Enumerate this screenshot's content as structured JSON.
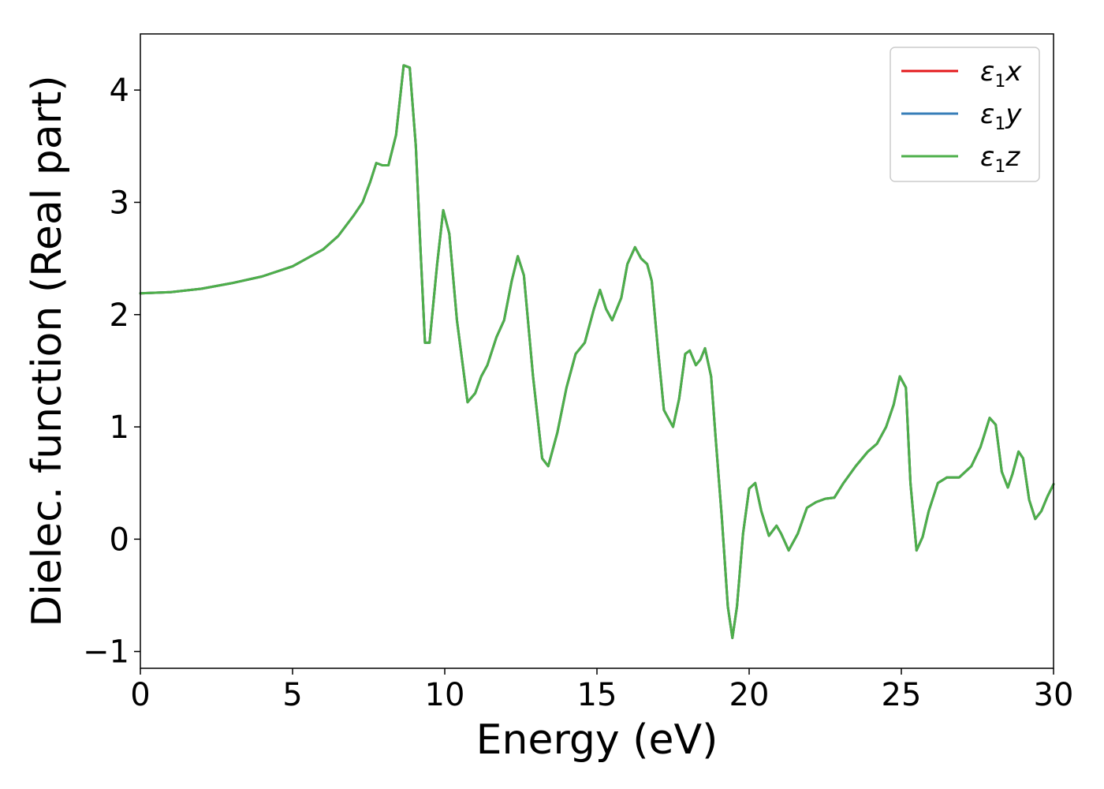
{
  "chart_data": {
    "type": "line",
    "xlabel": "Energy (eV)",
    "ylabel": "Dielec. function (Real part)",
    "xlim": [
      0,
      30
    ],
    "ylim": [
      -1.15,
      4.5
    ],
    "xticks": [
      0,
      5,
      10,
      15,
      20,
      25,
      30
    ],
    "yticks": [
      -1,
      0,
      1,
      2,
      3,
      4
    ],
    "xtick_labels": [
      "0",
      "5",
      "10",
      "15",
      "20",
      "25",
      "30"
    ],
    "ytick_labels": [
      "−1",
      "0",
      "1",
      "2",
      "3",
      "4"
    ],
    "grid": false,
    "legend_position": "top-right",
    "x": [
      0,
      1,
      2,
      3,
      4,
      5,
      6,
      6.5,
      7,
      7.3,
      7.55,
      7.75,
      7.95,
      8.15,
      8.4,
      8.65,
      8.85,
      9.05,
      9.2,
      9.35,
      9.5,
      9.75,
      9.95,
      10.15,
      10.4,
      10.75,
      11.0,
      11.2,
      11.4,
      11.7,
      11.95,
      12.2,
      12.4,
      12.6,
      12.9,
      13.2,
      13.4,
      13.7,
      14.0,
      14.3,
      14.6,
      14.9,
      15.1,
      15.3,
      15.5,
      15.8,
      16.0,
      16.25,
      16.45,
      16.65,
      16.8,
      17.0,
      17.2,
      17.5,
      17.7,
      17.9,
      18.05,
      18.25,
      18.4,
      18.55,
      18.75,
      18.9,
      19.1,
      19.3,
      19.45,
      19.6,
      19.8,
      20.0,
      20.2,
      20.4,
      20.65,
      20.9,
      21.05,
      21.3,
      21.6,
      21.9,
      22.2,
      22.5,
      22.8,
      23.1,
      23.5,
      23.9,
      24.2,
      24.5,
      24.75,
      24.95,
      25.15,
      25.3,
      25.5,
      25.7,
      25.9,
      26.2,
      26.5,
      26.9,
      27.3,
      27.6,
      27.9,
      28.1,
      28.3,
      28.5,
      28.65,
      28.85,
      29.0,
      29.2,
      29.4,
      29.6,
      29.8,
      30.0
    ],
    "series": [
      {
        "name": "x",
        "color": "#e41a1c",
        "y": [
          2.19,
          2.2,
          2.23,
          2.28,
          2.34,
          2.43,
          2.58,
          2.7,
          2.88,
          3.0,
          3.18,
          3.35,
          3.33,
          3.33,
          3.6,
          4.22,
          4.2,
          3.5,
          2.6,
          1.75,
          1.75,
          2.45,
          2.93,
          2.72,
          1.95,
          1.22,
          1.3,
          1.45,
          1.55,
          1.8,
          1.95,
          2.3,
          2.52,
          2.35,
          1.45,
          0.72,
          0.65,
          0.95,
          1.35,
          1.65,
          1.75,
          2.05,
          2.22,
          2.05,
          1.95,
          2.15,
          2.45,
          2.6,
          2.5,
          2.45,
          2.3,
          1.7,
          1.15,
          1.0,
          1.25,
          1.65,
          1.68,
          1.55,
          1.6,
          1.7,
          1.45,
          0.9,
          0.2,
          -0.6,
          -0.88,
          -0.6,
          0.05,
          0.45,
          0.5,
          0.25,
          0.03,
          0.12,
          0.05,
          -0.1,
          0.05,
          0.28,
          0.33,
          0.36,
          0.37,
          0.5,
          0.65,
          0.78,
          0.85,
          1.0,
          1.2,
          1.45,
          1.35,
          0.5,
          -0.1,
          0.02,
          0.25,
          0.5,
          0.55,
          0.55,
          0.65,
          0.82,
          1.08,
          1.02,
          0.6,
          0.46,
          0.58,
          0.78,
          0.72,
          0.35,
          0.18,
          0.25,
          0.38,
          0.49
        ]
      },
      {
        "name": "y",
        "color": "#377eb8",
        "y": [
          2.19,
          2.2,
          2.23,
          2.28,
          2.34,
          2.43,
          2.58,
          2.7,
          2.88,
          3.0,
          3.18,
          3.35,
          3.33,
          3.33,
          3.6,
          4.22,
          4.2,
          3.5,
          2.6,
          1.75,
          1.75,
          2.45,
          2.93,
          2.72,
          1.95,
          1.22,
          1.3,
          1.45,
          1.55,
          1.8,
          1.95,
          2.3,
          2.52,
          2.35,
          1.45,
          0.72,
          0.65,
          0.95,
          1.35,
          1.65,
          1.75,
          2.05,
          2.22,
          2.05,
          1.95,
          2.15,
          2.45,
          2.6,
          2.5,
          2.45,
          2.3,
          1.7,
          1.15,
          1.0,
          1.25,
          1.65,
          1.68,
          1.55,
          1.6,
          1.7,
          1.45,
          0.9,
          0.2,
          -0.6,
          -0.88,
          -0.6,
          0.05,
          0.45,
          0.5,
          0.25,
          0.03,
          0.12,
          0.05,
          -0.1,
          0.05,
          0.28,
          0.33,
          0.36,
          0.37,
          0.5,
          0.65,
          0.78,
          0.85,
          1.0,
          1.2,
          1.45,
          1.35,
          0.5,
          -0.1,
          0.02,
          0.25,
          0.5,
          0.55,
          0.55,
          0.65,
          0.82,
          1.08,
          1.02,
          0.6,
          0.46,
          0.58,
          0.78,
          0.72,
          0.35,
          0.18,
          0.25,
          0.38,
          0.49
        ]
      },
      {
        "name": "z",
        "color": "#4daf4a",
        "y": [
          2.19,
          2.2,
          2.23,
          2.28,
          2.34,
          2.43,
          2.58,
          2.7,
          2.88,
          3.0,
          3.18,
          3.35,
          3.33,
          3.33,
          3.6,
          4.22,
          4.2,
          3.5,
          2.6,
          1.75,
          1.75,
          2.45,
          2.93,
          2.72,
          1.95,
          1.22,
          1.3,
          1.45,
          1.55,
          1.8,
          1.95,
          2.3,
          2.52,
          2.35,
          1.45,
          0.72,
          0.65,
          0.95,
          1.35,
          1.65,
          1.75,
          2.05,
          2.22,
          2.05,
          1.95,
          2.15,
          2.45,
          2.6,
          2.5,
          2.45,
          2.3,
          1.7,
          1.15,
          1.0,
          1.25,
          1.65,
          1.68,
          1.55,
          1.6,
          1.7,
          1.45,
          0.9,
          0.2,
          -0.6,
          -0.88,
          -0.6,
          0.05,
          0.45,
          0.5,
          0.25,
          0.03,
          0.12,
          0.05,
          -0.1,
          0.05,
          0.28,
          0.33,
          0.36,
          0.37,
          0.5,
          0.65,
          0.78,
          0.85,
          1.0,
          1.2,
          1.45,
          1.35,
          0.5,
          -0.1,
          0.02,
          0.25,
          0.5,
          0.55,
          0.55,
          0.65,
          0.82,
          1.08,
          1.02,
          0.6,
          0.46,
          0.58,
          0.78,
          0.72,
          0.35,
          0.18,
          0.25,
          0.38,
          0.49
        ]
      }
    ],
    "legend": {
      "symbol": "ε",
      "subscript": "1",
      "entries": [
        "x",
        "y",
        "z"
      ]
    }
  }
}
